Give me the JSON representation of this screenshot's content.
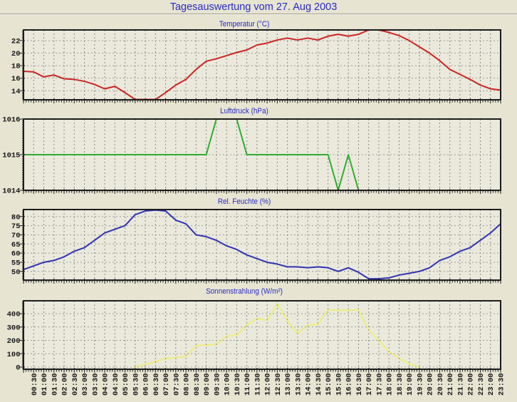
{
  "page": {
    "title": "Tagesauswertung vom 27. Aug 2003",
    "background_color": "#e7e4d2",
    "title_color": "#2a2ac6"
  },
  "time_axis": {
    "start": "00:00",
    "step_minutes": 30,
    "labels": [
      "00:30",
      "01:00",
      "01:30",
      "02:00",
      "02:30",
      "03:00",
      "03:30",
      "04:00",
      "04:30",
      "05:00",
      "05:30",
      "06:00",
      "06:30",
      "07:00",
      "07:30",
      "08:00",
      "08:30",
      "09:00",
      "09:30",
      "10:00",
      "10:30",
      "11:00",
      "11:30",
      "12:00",
      "12:30",
      "13:00",
      "13:30",
      "14:00",
      "14:30",
      "15:00",
      "15:30",
      "16:00",
      "16:30",
      "17:00",
      "17:30",
      "18:00",
      "18:30",
      "19:00",
      "19:30",
      "20:00",
      "20:30",
      "21:00",
      "21:30",
      "22:00",
      "22:30",
      "23:00",
      "23:30"
    ]
  },
  "chart_data": [
    {
      "type": "line",
      "title": "Temperatur (°C)",
      "line_color": "#cc2424",
      "y_ticks": [
        22,
        20,
        18,
        16,
        14
      ],
      "y_min": 12.55,
      "y_max": 23.7,
      "values": [
        17.1,
        17.0,
        16.2,
        16.5,
        15.9,
        15.8,
        15.5,
        15.0,
        14.3,
        14.7,
        13.7,
        12.6,
        12.6,
        12.6,
        13.7,
        14.9,
        15.8,
        17.4,
        18.7,
        19.1,
        19.6,
        20.1,
        20.5,
        21.3,
        21.6,
        22.1,
        22.4,
        22.1,
        22.4,
        22.1,
        22.7,
        23.0,
        22.7,
        23.0,
        23.7,
        23.7,
        23.3,
        22.8,
        22.0,
        21.0,
        20.0,
        18.8,
        17.4,
        16.6,
        15.8,
        14.9,
        14.3,
        14.1
      ]
    },
    {
      "type": "line",
      "title": "Luftdruck (hPa)",
      "line_color": "#2fae2f",
      "y_ticks": [
        1016,
        1015,
        1014
      ],
      "y_min": 1014,
      "y_max": 1016,
      "values": [
        1015,
        1015,
        1015,
        1015,
        1015,
        1015,
        1015,
        1015,
        1015,
        1015,
        1015,
        1015,
        1015,
        1015,
        1015,
        1015,
        1015,
        1015,
        1015,
        1016,
        1016,
        1016,
        1015,
        1015,
        1015,
        1015,
        1015,
        1015,
        1015,
        1015,
        1015,
        1014,
        1015,
        1014,
        1014,
        1014,
        1014,
        1014,
        1014,
        1014,
        1014,
        1014,
        1014,
        1014,
        1014,
        1014,
        1014,
        1014
      ]
    },
    {
      "type": "line",
      "title": "Rel. Feuchte (%)",
      "line_color": "#3232b2",
      "y_ticks": [
        80,
        75,
        70,
        65,
        60,
        55,
        50
      ],
      "y_min": 45.25,
      "y_max": 83.8,
      "values": [
        51,
        53,
        55,
        56,
        58,
        61,
        63,
        67,
        71,
        73,
        75,
        81,
        83,
        83.5,
        83,
        78,
        76,
        70,
        69,
        67,
        64,
        62,
        59,
        57,
        55,
        54,
        52.5,
        52.5,
        52,
        52.5,
        52,
        50,
        52,
        49.5,
        46,
        46,
        46.5,
        48,
        49,
        50,
        52,
        56,
        58,
        61,
        63,
        67,
        71,
        76
      ]
    },
    {
      "type": "line",
      "title": "Sonnenstrahlung (W/m²)",
      "line_color": "#eded7c",
      "y_ticks": [
        400,
        300,
        200,
        100,
        0
      ],
      "y_min": -16,
      "y_max": 496.5,
      "values": [
        null,
        null,
        null,
        null,
        null,
        null,
        null,
        null,
        null,
        null,
        null,
        0,
        20,
        40,
        65,
        70,
        80,
        160,
        165,
        170,
        230,
        240,
        315,
        365,
        350,
        475,
        345,
        250,
        315,
        320,
        430,
        425,
        425,
        430,
        280,
        200,
        115,
        65,
        25,
        0,
        null,
        null,
        null,
        null,
        null,
        null,
        null,
        null
      ]
    }
  ]
}
